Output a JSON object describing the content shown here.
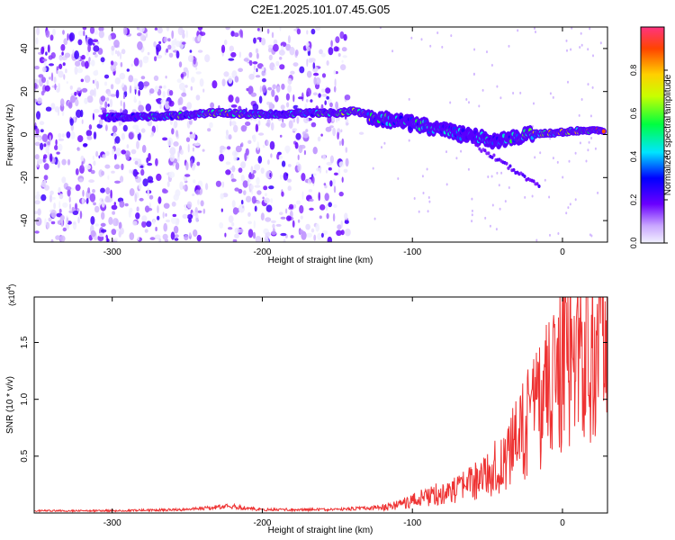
{
  "title": "C2E1.2025.101.07.45.G05",
  "chart_data": [
    {
      "type": "heatmap",
      "xlabel": "Height of straight line (km)",
      "ylabel": "Frequency (Hz)",
      "xlim": [
        -352,
        30
      ],
      "ylim": [
        -50,
        50
      ],
      "xticks": [
        -300,
        -200,
        -100,
        0
      ],
      "yticks": [
        -40,
        -20,
        0,
        20,
        40
      ],
      "colorbar": {
        "label": "Normalized spectral amplitude",
        "range": [
          0,
          1
        ],
        "ticks": [
          "0.0",
          "0.2",
          "0.4",
          "0.6",
          "0.8"
        ],
        "colormap": "rainbow"
      },
      "signal_track": [
        {
          "x": -305,
          "y": 8,
          "amp": 0.45
        },
        {
          "x": -290,
          "y": 8,
          "amp": 0.5
        },
        {
          "x": -270,
          "y": 8.5,
          "amp": 0.55
        },
        {
          "x": -250,
          "y": 9,
          "amp": 0.65
        },
        {
          "x": -235,
          "y": 10,
          "amp": 0.85
        },
        {
          "x": -225,
          "y": 10,
          "amp": 0.9
        },
        {
          "x": -210,
          "y": 9.5,
          "amp": 0.7
        },
        {
          "x": -190,
          "y": 9.5,
          "amp": 0.6
        },
        {
          "x": -170,
          "y": 10,
          "amp": 0.55
        },
        {
          "x": -150,
          "y": 10,
          "amp": 0.6
        },
        {
          "x": -138,
          "y": 11,
          "amp": 0.9
        },
        {
          "x": -120,
          "y": 7,
          "amp": 0.6
        },
        {
          "x": -100,
          "y": 5,
          "amp": 0.55
        },
        {
          "x": -80,
          "y": 2,
          "amp": 0.5
        },
        {
          "x": -60,
          "y": -1,
          "amp": 0.45
        },
        {
          "x": -45,
          "y": -3,
          "amp": 0.5
        },
        {
          "x": -30,
          "y": -1,
          "amp": 0.6
        },
        {
          "x": -15,
          "y": 0.5,
          "amp": 0.8
        },
        {
          "x": 0,
          "y": 1,
          "amp": 0.85
        },
        {
          "x": 15,
          "y": 2,
          "amp": 0.9
        },
        {
          "x": 28,
          "y": 2,
          "amp": 0.85
        }
      ]
    },
    {
      "type": "line",
      "xlabel": "Height of straight line (km)",
      "ylabel": "SNR (10 * v/v)",
      "multiplier": "(x10",
      "multiplier_exp": "4",
      "xlim": [
        -352,
        30
      ],
      "ylim": [
        0,
        1.9
      ],
      "xticks": [
        -300,
        -200,
        -100,
        0
      ],
      "yticks": [
        "0.5",
        "1.0",
        "1.5"
      ],
      "series": [
        {
          "color": "#ee3333",
          "x": [
            -352,
            -300,
            -250,
            -230,
            -220,
            -210,
            -200,
            -150,
            -120,
            -110,
            -100,
            -90,
            -80,
            -70,
            -60,
            -50,
            -40,
            -30,
            -20,
            -10,
            0,
            10,
            20,
            30
          ],
          "y": [
            0.02,
            0.02,
            0.03,
            0.05,
            0.06,
            0.04,
            0.03,
            0.03,
            0.05,
            0.08,
            0.12,
            0.16,
            0.2,
            0.22,
            0.3,
            0.38,
            0.5,
            0.7,
            0.95,
            1.2,
            1.45,
            1.6,
            1.7,
            1.78
          ]
        }
      ]
    }
  ]
}
